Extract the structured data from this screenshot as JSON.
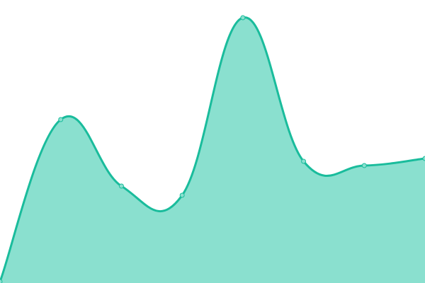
{
  "chart_data": {
    "type": "area",
    "x": [
      0,
      1,
      2,
      3,
      4,
      5,
      6,
      7
    ],
    "values": [
      2,
      231,
      137,
      124,
      375,
      172,
      166,
      176
    ],
    "ylim": [
      0,
      400
    ],
    "grid": false,
    "smooth": true,
    "colors": {
      "line": "#1abc9c",
      "fill": "#8ae0cf",
      "marker": "#8ae0cf"
    }
  }
}
